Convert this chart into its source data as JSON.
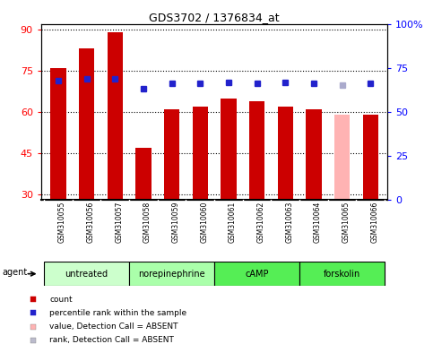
{
  "title": "GDS3702 / 1376834_at",
  "samples": [
    "GSM310055",
    "GSM310056",
    "GSM310057",
    "GSM310058",
    "GSM310059",
    "GSM310060",
    "GSM310061",
    "GSM310062",
    "GSM310063",
    "GSM310064",
    "GSM310065",
    "GSM310066"
  ],
  "bar_values": [
    76,
    83,
    89,
    47,
    61,
    62,
    65,
    64,
    62,
    61,
    59,
    59
  ],
  "bar_colors": [
    "#cc0000",
    "#cc0000",
    "#cc0000",
    "#cc0000",
    "#cc0000",
    "#cc0000",
    "#cc0000",
    "#cc0000",
    "#cc0000",
    "#cc0000",
    "#ffb3b3",
    "#cc0000"
  ],
  "rank_values": [
    68,
    69,
    69,
    63,
    66,
    66,
    67,
    66,
    67,
    66,
    65,
    66
  ],
  "rank_colors": [
    "#2222cc",
    "#2222cc",
    "#2222cc",
    "#2222cc",
    "#2222cc",
    "#2222cc",
    "#2222cc",
    "#2222cc",
    "#2222cc",
    "#2222cc",
    "#aaaacc",
    "#2222cc"
  ],
  "ylim_left": [
    28,
    92
  ],
  "ylim_right": [
    0,
    100
  ],
  "yticks_left": [
    30,
    45,
    60,
    75,
    90
  ],
  "yticks_right": [
    0,
    25,
    50,
    75,
    100
  ],
  "ytick_labels_right": [
    "0",
    "25",
    "50",
    "75",
    "100%"
  ],
  "groups": [
    {
      "label": "untreated",
      "start": 0,
      "end": 3,
      "color": "#ccffcc"
    },
    {
      "label": "norepinephrine",
      "start": 3,
      "end": 6,
      "color": "#aaffaa"
    },
    {
      "label": "cAMP",
      "start": 6,
      "end": 9,
      "color": "#55ee55"
    },
    {
      "label": "forskolin",
      "start": 9,
      "end": 12,
      "color": "#55ee55"
    }
  ],
  "legend_items": [
    {
      "color": "#cc0000",
      "label": "count"
    },
    {
      "color": "#2222cc",
      "label": "percentile rank within the sample"
    },
    {
      "color": "#ffb3b3",
      "label": "value, Detection Call = ABSENT"
    },
    {
      "color": "#bbbbcc",
      "label": "rank, Detection Call = ABSENT"
    }
  ],
  "bg_color": "#ffffff",
  "tick_area_color": "#cccccc",
  "bar_width": 0.55
}
